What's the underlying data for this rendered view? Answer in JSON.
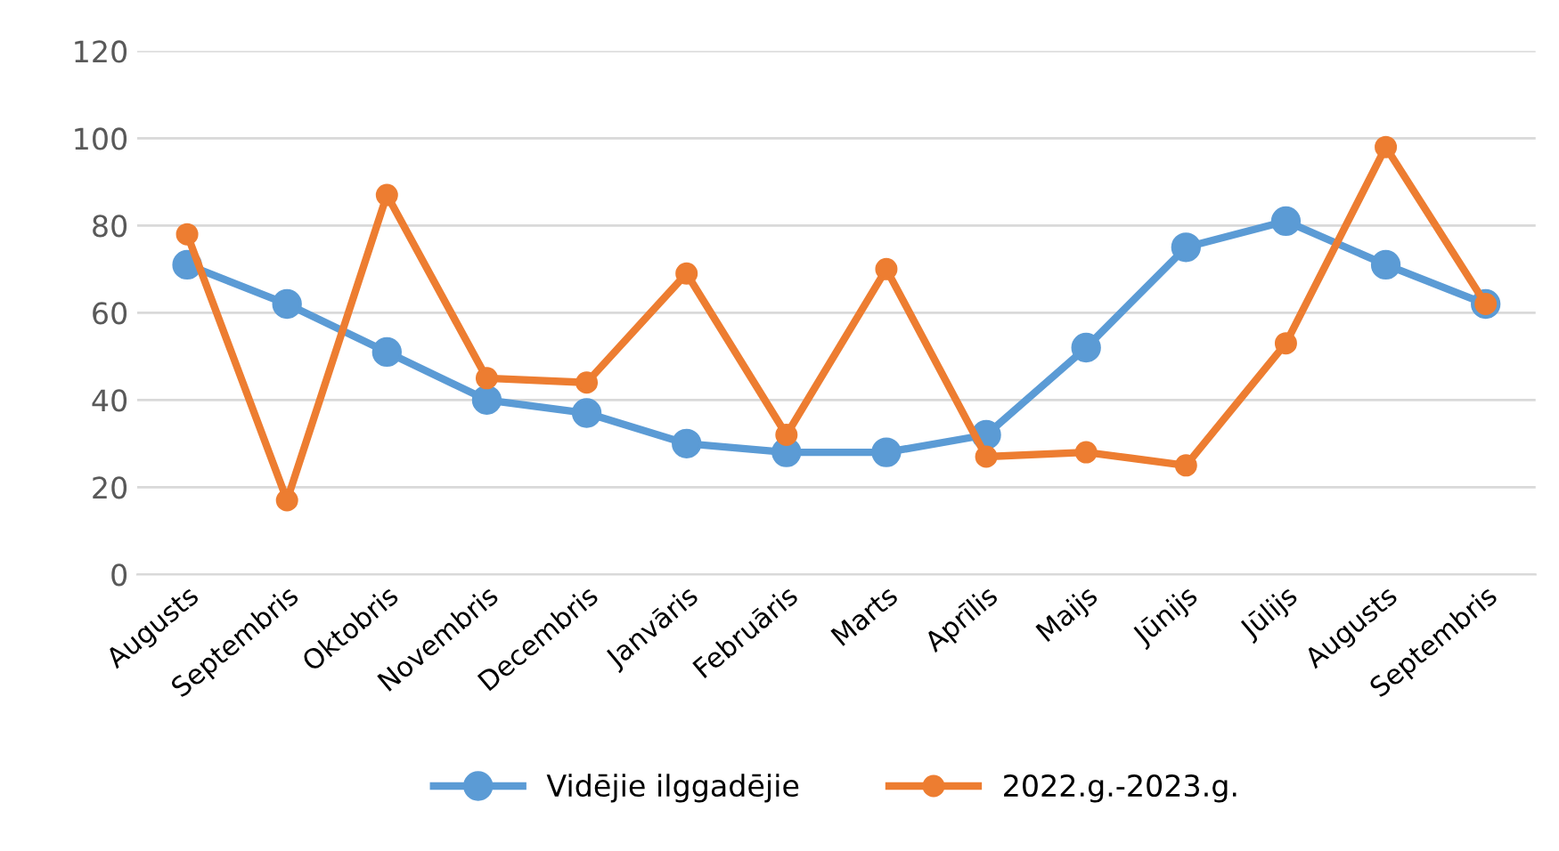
{
  "chart_data": {
    "type": "line",
    "categories": [
      "Augusts",
      "Septembris",
      "Oktobris",
      "Novembris",
      "Decembris",
      "Janvāris",
      "Februāris",
      "Marts",
      "Aprīlis",
      "Maijs",
      "Jūnijs",
      "Jūlijs",
      "Augusts",
      "Septembris"
    ],
    "series": [
      {
        "name": "Vidējie ilggadējie",
        "color": "#5b9bd5",
        "values": [
          71,
          62,
          51,
          40,
          37,
          30,
          28,
          28,
          32,
          52,
          75,
          81,
          71,
          62
        ]
      },
      {
        "name": "2022.g.-2023.g.",
        "color": "#ed7d31",
        "values": [
          78,
          17,
          87,
          45,
          44,
          69,
          32,
          70,
          27,
          28,
          25,
          53,
          98,
          62
        ]
      }
    ],
    "ylim": [
      0,
      120
    ],
    "yticks": [
      0,
      20,
      40,
      60,
      80,
      100,
      120
    ],
    "grid": "y",
    "legend": "bottom",
    "marker": "circle",
    "line_style": "solid"
  }
}
